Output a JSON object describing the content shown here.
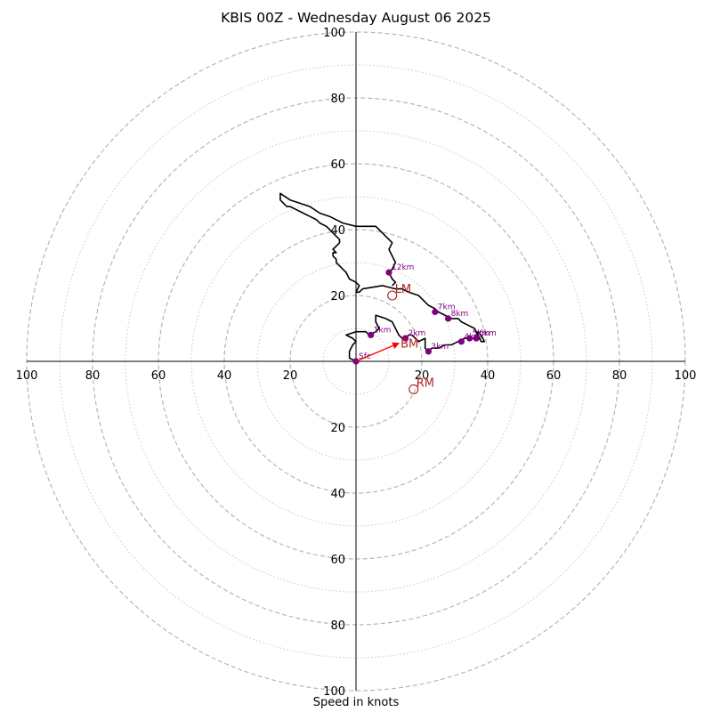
{
  "chart_data": {
    "type": "hodograph",
    "title": "KBIS 00Z - Wednesday August 06 2025",
    "xlabel": "Speed in knots",
    "ylabel": "",
    "xlim": [
      -100,
      100
    ],
    "ylim": [
      -100,
      100
    ],
    "grid": true,
    "tick_labels": [
      "20",
      "40",
      "60",
      "80",
      "100"
    ],
    "ring_values": [
      20,
      40,
      60,
      80,
      100
    ],
    "minor_ring_values": [
      10,
      30,
      50,
      70,
      90
    ],
    "hodograph_trace": [
      [
        0,
        0
      ],
      [
        -2,
        1
      ],
      [
        -2,
        3
      ],
      [
        -1,
        5
      ],
      [
        0,
        6
      ],
      [
        -1,
        7
      ],
      [
        -3,
        8
      ],
      [
        0,
        9
      ],
      [
        3,
        9
      ],
      [
        4,
        8
      ],
      [
        6,
        9
      ],
      [
        7,
        10
      ],
      [
        6,
        12
      ],
      [
        6,
        14
      ],
      [
        9,
        13
      ],
      [
        11,
        12
      ],
      [
        12,
        10
      ],
      [
        13,
        8
      ],
      [
        14,
        7
      ],
      [
        15,
        7
      ],
      [
        16,
        8
      ],
      [
        17,
        8
      ],
      [
        18,
        7
      ],
      [
        19,
        6
      ],
      [
        21,
        7
      ],
      [
        21,
        5
      ],
      [
        21,
        4
      ],
      [
        22,
        3
      ],
      [
        23,
        4
      ],
      [
        25,
        4
      ],
      [
        27,
        5
      ],
      [
        29,
        5
      ],
      [
        31,
        6
      ],
      [
        33,
        7
      ],
      [
        34,
        7
      ],
      [
        36,
        7
      ],
      [
        37,
        7
      ],
      [
        37,
        9
      ],
      [
        38,
        8
      ],
      [
        39,
        6
      ],
      [
        38,
        6
      ],
      [
        36,
        10
      ],
      [
        34,
        11
      ],
      [
        32,
        12
      ],
      [
        31,
        13
      ],
      [
        29,
        13
      ],
      [
        27,
        14
      ],
      [
        25,
        15
      ],
      [
        24,
        16
      ],
      [
        22,
        17
      ],
      [
        21,
        18
      ],
      [
        19,
        20
      ],
      [
        16,
        21
      ],
      [
        14,
        22
      ],
      [
        12,
        22
      ],
      [
        8,
        23
      ],
      [
        2,
        22
      ],
      [
        1,
        21
      ],
      [
        0,
        21
      ],
      [
        1,
        23
      ],
      [
        0,
        24
      ],
      [
        -2,
        25
      ],
      [
        -3,
        27
      ],
      [
        -4,
        28
      ],
      [
        -5,
        29
      ],
      [
        -6,
        30
      ],
      [
        -6,
        31
      ],
      [
        -7,
        32
      ],
      [
        -7,
        33
      ],
      [
        -6,
        33
      ],
      [
        -7,
        34
      ],
      [
        -6,
        35
      ],
      [
        -5,
        36
      ],
      [
        -5,
        37
      ],
      [
        -6,
        38
      ],
      [
        -7,
        39
      ],
      [
        -8,
        40
      ],
      [
        -9,
        41
      ],
      [
        -11,
        42
      ],
      [
        -12,
        43
      ],
      [
        -14,
        44
      ],
      [
        -16,
        45
      ],
      [
        -18,
        46
      ],
      [
        -20,
        47
      ],
      [
        -21,
        47
      ],
      [
        -22,
        48
      ],
      [
        -23,
        49
      ],
      [
        -23,
        50
      ],
      [
        -23,
        51
      ],
      [
        -20,
        49
      ],
      [
        -17,
        48
      ],
      [
        -14,
        47
      ],
      [
        -11,
        45
      ],
      [
        -8,
        44
      ],
      [
        -4,
        42
      ],
      [
        0,
        41
      ],
      [
        3,
        41
      ],
      [
        6,
        41
      ],
      [
        7,
        40
      ],
      [
        8,
        39
      ],
      [
        9,
        38
      ],
      [
        10,
        37
      ],
      [
        11,
        36
      ],
      [
        10,
        34
      ],
      [
        11,
        32
      ],
      [
        12,
        30
      ],
      [
        11,
        28
      ],
      [
        10,
        27
      ],
      [
        11,
        25
      ],
      [
        12,
        24
      ],
      [
        11,
        23
      ]
    ],
    "height_points": [
      {
        "label": "Sfc",
        "u": 0,
        "v": 0
      },
      {
        "label": "1km",
        "u": 4.5,
        "v": 8
      },
      {
        "label": "2km",
        "u": 15,
        "v": 7
      },
      {
        "label": "3km",
        "u": 22,
        "v": 3
      },
      {
        "label": "4km",
        "u": 32,
        "v": 6
      },
      {
        "label": "5km",
        "u": 34.5,
        "v": 7
      },
      {
        "label": "6km",
        "u": 36.5,
        "v": 7
      },
      {
        "label": "7km",
        "u": 24,
        "v": 15
      },
      {
        "label": "8km",
        "u": 28,
        "v": 13
      },
      {
        "label": "12km",
        "u": 10,
        "v": 27
      }
    ],
    "storm_motions": [
      {
        "label": "LM",
        "u": 11,
        "v": 20
      },
      {
        "label": "RM",
        "u": 17.5,
        "v": -8.5
      },
      {
        "label": "BM",
        "u": 13,
        "v": 5.5
      }
    ],
    "colors": {
      "trace": "#000000",
      "height_points": "#800080",
      "storm_motion": "#b22222",
      "mean_wind_arrow": "#ff0000",
      "major_grid": "#b0b0b0",
      "minor_grid": "#c8c8c8"
    }
  }
}
